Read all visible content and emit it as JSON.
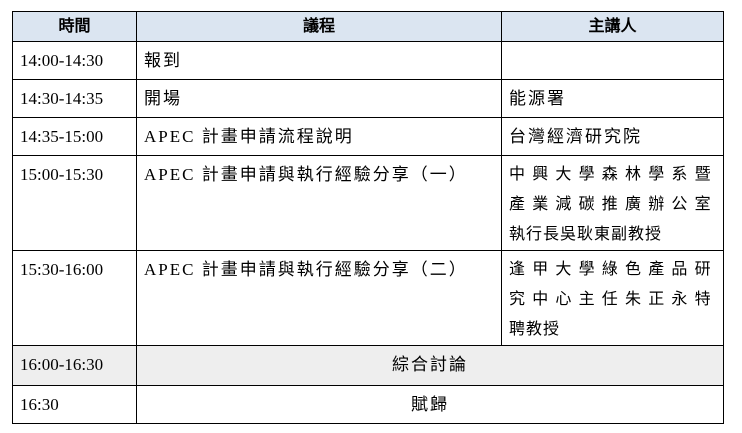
{
  "headers": [
    "時間",
    "議程",
    "主講人"
  ],
  "rows": [
    {
      "time": "14:00-14:30",
      "agenda": "報到",
      "speaker": []
    },
    {
      "time": "14:30-14:35",
      "agenda": "開場",
      "speaker": [
        "能源署"
      ]
    },
    {
      "time": "14:35-15:00",
      "agenda": "APEC 計畫申請流程說明",
      "speaker": [
        "台灣經濟研究院"
      ]
    },
    {
      "time": "15:00-15:30",
      "agenda": "APEC 計畫申請與執行經驗分享（一）",
      "speaker": [
        "中興大學森林學系暨",
        "產業減碳推廣辦公室",
        "執行長吳耿東副教授"
      ]
    },
    {
      "time": "15:30-16:00",
      "agenda": "APEC 計畫申請與執行經驗分享（二）",
      "speaker": [
        "逢甲大學綠色產品研",
        "究中心主任朱正永特",
        "聘教授"
      ]
    },
    {
      "time": "16:00-16:30",
      "agenda": "綜合討論"
    },
    {
      "time": "16:30",
      "agenda": "賦歸"
    }
  ],
  "colors": {
    "header_bg": "#dbe5f1",
    "discussion_bg": "#eeeeee"
  }
}
